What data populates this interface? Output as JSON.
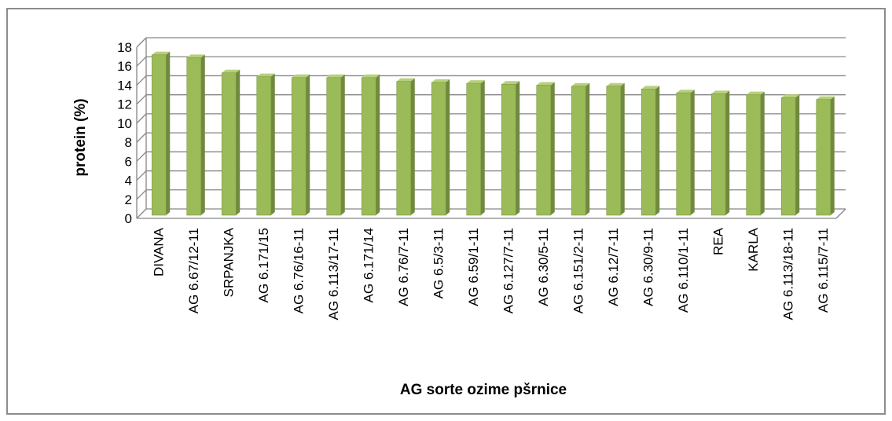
{
  "chart_data": {
    "type": "bar",
    "title": "",
    "xlabel": "AG sorte ozime pšrnice",
    "ylabel": "protein (%)",
    "ylim": [
      0,
      18
    ],
    "yticks": [
      "0",
      "2",
      "4",
      "6",
      "8",
      "10",
      "12",
      "14",
      "16",
      "18"
    ],
    "grid": true,
    "categories": [
      "DIVANA",
      "AG 6.67/12-11",
      "SRPANJKA",
      "AG 6.171/15",
      "AG 6.76/16-11",
      "AG 6.113/17-11",
      "AG 6.171/14",
      "AG 6.76/7-11",
      "AG 6.5/3-11",
      "AG 6.59/1-11",
      "AG 6.127/7-11",
      "AG 6.30/5-11",
      "AG 6.151/2-11",
      "AG 6.12/7-11",
      "AG 6.30/9-11",
      "AG 6.110/1-11",
      "REA",
      "KARLA",
      "AG 6.113/18-11",
      "AG 6.115/7-11"
    ],
    "values": [
      16.7,
      16.4,
      14.8,
      14.4,
      14.3,
      14.3,
      14.3,
      13.9,
      13.8,
      13.7,
      13.6,
      13.5,
      13.4,
      13.4,
      13.1,
      12.7,
      12.6,
      12.5,
      12.2,
      12.0
    ],
    "colors": {
      "bar_front": "#9bbb59",
      "bar_side": "#71893f",
      "bar_top": "#b7d07c",
      "grid": "#868686",
      "wall": "#ffffff"
    }
  }
}
